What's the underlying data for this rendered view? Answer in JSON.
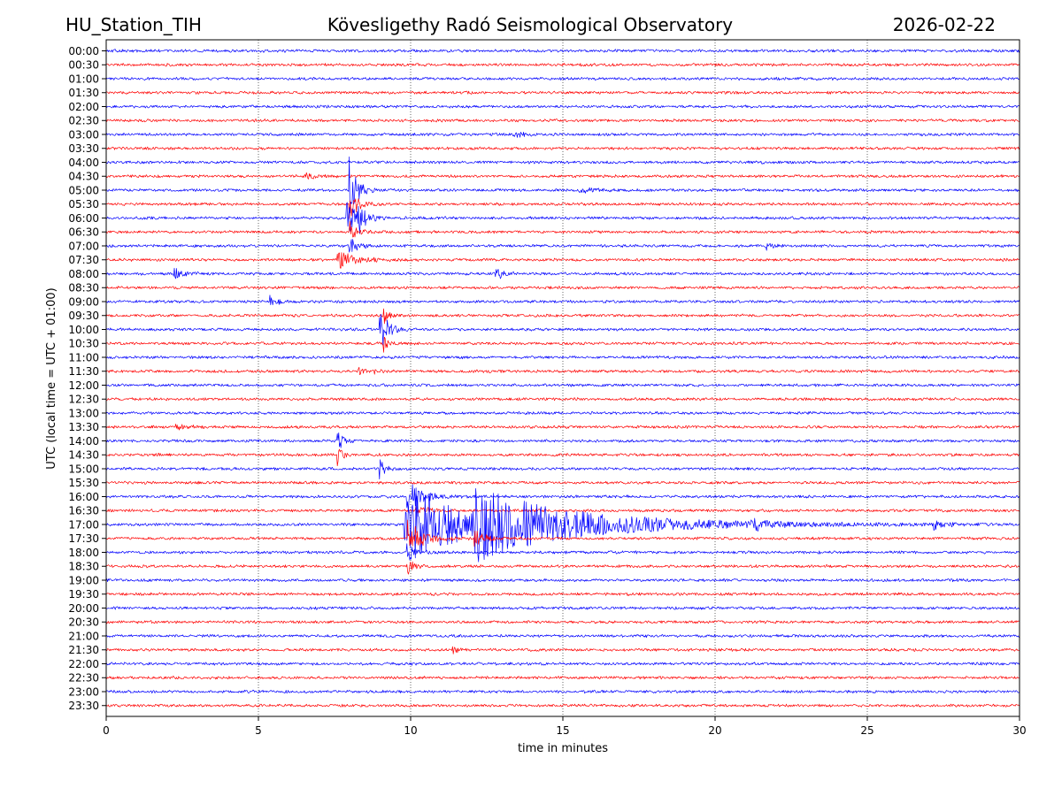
{
  "header": {
    "station": "HU_Station_TIH",
    "observatory": "Kövesligethy Radó Seismological Observatory",
    "date": "2026-02-22"
  },
  "chart_data": {
    "type": "line",
    "title": "Kövesligethy Radó Seismological Observatory",
    "xlabel": "time in minutes",
    "ylabel": "UTC (local time = UTC + 01:00)",
    "xlim": [
      0,
      30
    ],
    "x_ticks": [
      "0",
      "5",
      "10",
      "15",
      "20",
      "25",
      "30"
    ],
    "grid": "vertical dotted lines at each x tick",
    "row_labels": [
      "00:00",
      "00:30",
      "01:00",
      "01:30",
      "02:00",
      "02:30",
      "03:00",
      "03:30",
      "04:00",
      "04:30",
      "05:00",
      "05:30",
      "06:00",
      "06:30",
      "07:00",
      "07:30",
      "08:00",
      "08:30",
      "09:00",
      "09:30",
      "10:00",
      "10:30",
      "11:00",
      "11:30",
      "12:00",
      "12:30",
      "13:00",
      "13:30",
      "14:00",
      "14:30",
      "15:00",
      "15:30",
      "16:00",
      "16:30",
      "17:00",
      "17:30",
      "18:00",
      "18:30",
      "19:00",
      "19:30",
      "20:00",
      "20:30",
      "21:00",
      "21:30",
      "22:00",
      "22:30",
      "23:00",
      "23:30"
    ],
    "colors": [
      "#0000ff",
      "#ff0000"
    ],
    "noise_amplitude": 0.1,
    "events": [
      {
        "row": "03:00",
        "minute": 13.4,
        "amplitude": 0.25,
        "duration": 0.6
      },
      {
        "row": "04:30",
        "minute": 6.5,
        "amplitude": 0.4,
        "duration": 0.5
      },
      {
        "row": "05:00",
        "minute": 15.5,
        "amplitude": 0.2,
        "duration": 1.2
      },
      {
        "row": "05:00",
        "minute": 8.0,
        "amplitude": 2.6,
        "duration": 0.5
      },
      {
        "row": "05:30",
        "minute": 8.0,
        "amplitude": 1.2,
        "duration": 0.6
      },
      {
        "row": "06:00",
        "minute": 7.9,
        "amplitude": 1.4,
        "duration": 0.7
      },
      {
        "row": "06:00",
        "minute": 8.3,
        "amplitude": 0.9,
        "duration": 0.5
      },
      {
        "row": "06:30",
        "minute": 8.0,
        "amplitude": 0.8,
        "duration": 0.5
      },
      {
        "row": "07:00",
        "minute": 8.0,
        "amplitude": 0.8,
        "duration": 0.5
      },
      {
        "row": "07:00",
        "minute": 21.7,
        "amplitude": 0.3,
        "duration": 0.6
      },
      {
        "row": "07:30",
        "minute": 7.6,
        "amplitude": 0.7,
        "duration": 1.2
      },
      {
        "row": "08:00",
        "minute": 2.2,
        "amplitude": 0.6,
        "duration": 0.6
      },
      {
        "row": "08:00",
        "minute": 12.8,
        "amplitude": 0.7,
        "duration": 0.4
      },
      {
        "row": "09:00",
        "minute": 5.4,
        "amplitude": 0.4,
        "duration": 0.5
      },
      {
        "row": "09:30",
        "minute": 9.1,
        "amplitude": 0.9,
        "duration": 0.3
      },
      {
        "row": "10:00",
        "minute": 9.0,
        "amplitude": 2.0,
        "duration": 0.5
      },
      {
        "row": "10:30",
        "minute": 9.1,
        "amplitude": 0.7,
        "duration": 0.3
      },
      {
        "row": "11:30",
        "minute": 8.3,
        "amplitude": 0.3,
        "duration": 0.3
      },
      {
        "row": "11:30",
        "minute": 8.8,
        "amplitude": 0.3,
        "duration": 0.3
      },
      {
        "row": "13:30",
        "minute": 2.3,
        "amplitude": 0.3,
        "duration": 0.6
      },
      {
        "row": "14:00",
        "minute": 7.6,
        "amplitude": 1.1,
        "duration": 0.3
      },
      {
        "row": "14:30",
        "minute": 7.6,
        "amplitude": 0.9,
        "duration": 0.3
      },
      {
        "row": "15:00",
        "minute": 9.0,
        "amplitude": 0.8,
        "duration": 0.4
      },
      {
        "row": "16:00",
        "minute": 9.9,
        "amplitude": 1.3,
        "duration": 1.0
      },
      {
        "row": "16:30",
        "minute": 10.2,
        "amplitude": 0.4,
        "duration": 0.8
      },
      {
        "row": "17:00",
        "minute": 9.8,
        "amplitude": 3.5,
        "duration": 4.0
      },
      {
        "row": "17:00",
        "minute": 12.1,
        "amplitude": 2.2,
        "duration": 8.0
      },
      {
        "row": "17:00",
        "minute": 21.2,
        "amplitude": 0.5,
        "duration": 0.6
      },
      {
        "row": "17:00",
        "minute": 27.2,
        "amplitude": 0.4,
        "duration": 0.6
      },
      {
        "row": "17:30",
        "minute": 9.9,
        "amplitude": 1.5,
        "duration": 1.0
      },
      {
        "row": "17:30",
        "minute": 12.1,
        "amplitude": 0.8,
        "duration": 0.6
      },
      {
        "row": "18:00",
        "minute": 9.9,
        "amplitude": 0.8,
        "duration": 0.6
      },
      {
        "row": "18:30",
        "minute": 9.9,
        "amplitude": 0.6,
        "duration": 0.5
      },
      {
        "row": "21:30",
        "minute": 11.4,
        "amplitude": 0.3,
        "duration": 0.4
      }
    ]
  }
}
